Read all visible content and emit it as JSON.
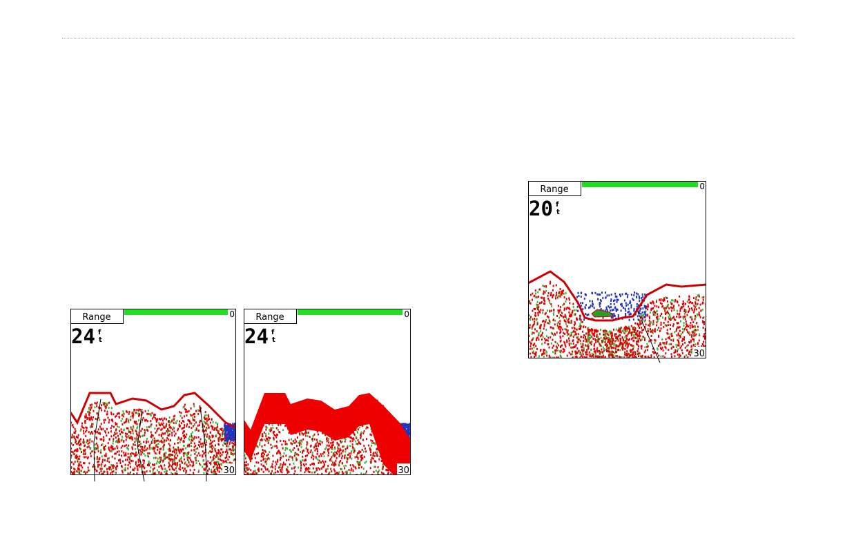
{
  "screens": [
    {
      "button": "Range",
      "scale_top": "0",
      "depth": "24",
      "unit": [
        "f",
        "t"
      ],
      "scale_bottom": "30"
    },
    {
      "button": "Range",
      "scale_top": "0",
      "depth": "24",
      "unit": [
        "f",
        "t"
      ],
      "scale_bottom": "30"
    },
    {
      "button": "Range",
      "scale_top": "0",
      "depth": "20",
      "unit": [
        "f",
        "t"
      ],
      "scale_bottom": "30"
    }
  ]
}
